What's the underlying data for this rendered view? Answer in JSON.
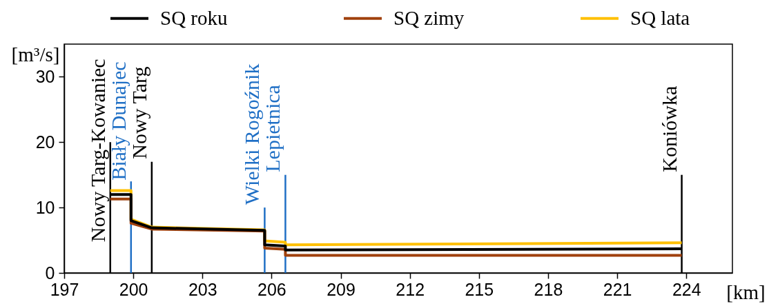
{
  "chart_data": {
    "type": "line",
    "xlabel": "[km]",
    "ylabel": "[m³/s]",
    "xlim": [
      197,
      226
    ],
    "ylim": [
      0,
      35
    ],
    "xticks": [
      197,
      200,
      203,
      206,
      209,
      212,
      215,
      218,
      221,
      224
    ],
    "yticks": [
      0,
      10,
      20,
      30
    ],
    "grid": false,
    "legend": "top",
    "series": [
      {
        "name": "SQ roku",
        "color": "#000000",
        "x": [
          199,
          199.9,
          199.9,
          200.8,
          205.7,
          205.7,
          206.6,
          206.6,
          223.8
        ],
        "values": [
          12.0,
          12.0,
          8.0,
          6.9,
          6.5,
          4.3,
          4.1,
          3.5,
          3.7
        ]
      },
      {
        "name": "SQ zimy",
        "color": "#a0410d",
        "x": [
          199,
          199.9,
          199.9,
          200.8,
          205.7,
          205.7,
          206.6,
          206.6,
          223.8
        ],
        "values": [
          11.3,
          11.3,
          7.6,
          6.7,
          6.4,
          3.8,
          3.6,
          2.7,
          2.7
        ]
      },
      {
        "name": "SQ lata",
        "color": "#ffc000",
        "x": [
          199,
          199.9,
          199.9,
          200.8,
          205.7,
          205.7,
          206.6,
          206.6,
          223.8
        ],
        "values": [
          12.6,
          12.6,
          8.2,
          7.0,
          6.6,
          4.9,
          4.7,
          4.3,
          4.6
        ]
      },
      {
        "name": "Nowy Targ-Kowaniec",
        "color": "#000000",
        "x": [
          199,
          199
        ],
        "values": [
          0,
          20
        ]
      },
      {
        "name": "Biały Dunajec",
        "color": "#1f6fc5",
        "x": [
          199.9,
          199.9
        ],
        "values": [
          0,
          14
        ]
      },
      {
        "name": "Nowy Targ",
        "color": "#000000",
        "x": [
          200.8,
          200.8
        ],
        "values": [
          0,
          17
        ]
      },
      {
        "name": "Wielki Rogoźnik",
        "color": "#1f6fc5",
        "x": [
          205.7,
          205.7
        ],
        "values": [
          0,
          10
        ]
      },
      {
        "name": "Lepietnica",
        "color": "#1f6fc5",
        "x": [
          206.6,
          206.6
        ],
        "values": [
          0,
          15
        ]
      },
      {
        "name": "Koniówka",
        "color": "#000000",
        "x": [
          223.8,
          223.8
        ],
        "values": [
          0,
          15
        ]
      }
    ]
  }
}
